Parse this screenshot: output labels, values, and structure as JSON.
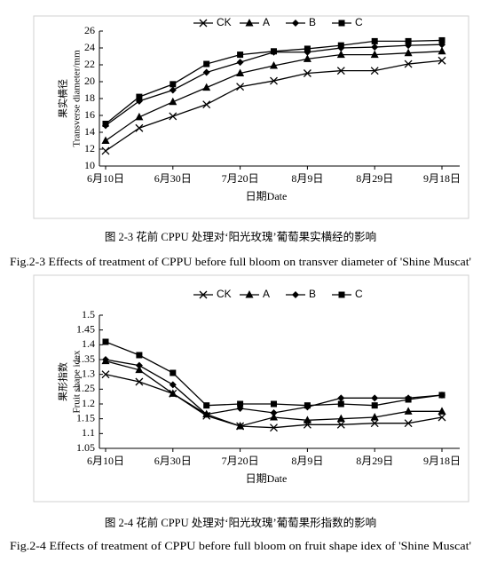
{
  "chart_data": [
    {
      "type": "line",
      "xlabel": "日期Date",
      "ylabel": [
        "果实横径",
        "Transverse diameter/mm"
      ],
      "caption_cn": "图 2-3  花前 CPPU 处理对‘阳光玫瑰’葡萄果实横经的影响",
      "caption_en": "Fig.2-3 Effects of treatment of CPPU before full bloom on transver diameter of 'Shine Muscat'",
      "categories": [
        "6月10日",
        null,
        "6月30日",
        null,
        "7月20日",
        null,
        "8月9日",
        null,
        "8月29日",
        null,
        "9月18日"
      ],
      "series": [
        {
          "name": "CK",
          "color": "#000000",
          "marker": "x",
          "values": [
            11.8,
            14.5,
            15.9,
            17.3,
            19.4,
            20.1,
            21.0,
            21.3,
            21.3,
            22.1,
            22.5
          ]
        },
        {
          "name": "A",
          "color": "#000000",
          "marker": "triangle",
          "values": [
            13.0,
            15.8,
            17.6,
            19.3,
            21.0,
            21.9,
            22.7,
            23.2,
            23.2,
            23.4,
            23.6
          ]
        },
        {
          "name": "B",
          "color": "#000000",
          "marker": "diamond",
          "values": [
            14.8,
            17.7,
            19.0,
            21.1,
            22.3,
            23.5,
            23.5,
            24.0,
            24.1,
            24.3,
            24.4
          ]
        },
        {
          "name": "C",
          "color": "#000000",
          "marker": "square",
          "values": [
            15.0,
            18.2,
            19.7,
            22.1,
            23.2,
            23.6,
            23.9,
            24.3,
            24.8,
            24.8,
            24.9
          ]
        }
      ],
      "ylim": [
        10,
        26
      ],
      "yticks": [
        10,
        12,
        14,
        16,
        18,
        20,
        22,
        24,
        26
      ],
      "grid": false,
      "legend": "top"
    },
    {
      "type": "line",
      "xlabel": "日期Date",
      "ylabel": [
        "果形指数",
        "Fruit shape idex"
      ],
      "caption_cn": "图 2-4  花前 CPPU 处理对‘阳光玫瑰’葡萄果形指数的影响",
      "caption_en": "Fig.2-4 Effects of treatment of CPPU before full bloom on fruit shape idex of 'Shine Muscat'",
      "categories": [
        "6月10日",
        null,
        "6月30日",
        null,
        "7月20日",
        null,
        "8月9日",
        null,
        "8月29日",
        null,
        "9月18日"
      ],
      "series": [
        {
          "name": "CK",
          "color": "#000000",
          "marker": "x",
          "values": [
            1.3,
            1.275,
            1.235,
            1.16,
            1.125,
            1.12,
            1.13,
            1.13,
            1.135,
            1.135,
            1.155
          ]
        },
        {
          "name": "A",
          "color": "#000000",
          "marker": "triangle",
          "values": [
            1.345,
            1.315,
            1.235,
            1.165,
            1.125,
            1.155,
            1.145,
            1.15,
            1.155,
            1.175,
            1.175
          ]
        },
        {
          "name": "B",
          "color": "#000000",
          "marker": "diamond",
          "values": [
            1.35,
            1.33,
            1.265,
            1.165,
            1.185,
            1.17,
            1.19,
            1.22,
            1.22,
            1.22,
            1.23
          ]
        },
        {
          "name": "C",
          "color": "#000000",
          "marker": "square",
          "values": [
            1.41,
            1.365,
            1.305,
            1.195,
            1.2,
            1.2,
            1.195,
            1.2,
            1.195,
            1.215,
            1.23
          ]
        }
      ],
      "ylim": [
        1.05,
        1.5
      ],
      "yticks": [
        1.05,
        1.1,
        1.15,
        1.2,
        1.25,
        1.3,
        1.35,
        1.4,
        1.45,
        1.5
      ],
      "grid": false,
      "legend": "top"
    }
  ]
}
